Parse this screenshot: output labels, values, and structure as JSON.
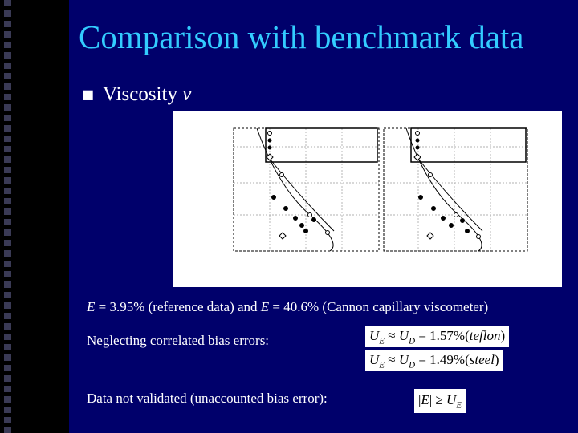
{
  "title": "Comparison with benchmark data",
  "bullet": {
    "text": "Viscosity",
    "symbol": "ν"
  },
  "statement": [
    "E",
    " = 3.95% (reference data) and ",
    "E",
    " = 40.6% (Cannon capillary viscometer)"
  ],
  "correlated_note": "Neglecting correlated bias errors:",
  "equations": [
    [
      "U",
      "E",
      " ≈ ",
      "U",
      "D",
      " = 1.57%(",
      "teflon",
      ")"
    ],
    [
      "U",
      "E",
      " ≈ ",
      "U",
      "D",
      " = 1.49%(",
      "steel",
      ")"
    ]
  ],
  "validation_note": "Data not validated (unaccounted bias error):",
  "criterion": [
    "|",
    "E",
    "| ≥ ",
    "U",
    "E"
  ]
}
